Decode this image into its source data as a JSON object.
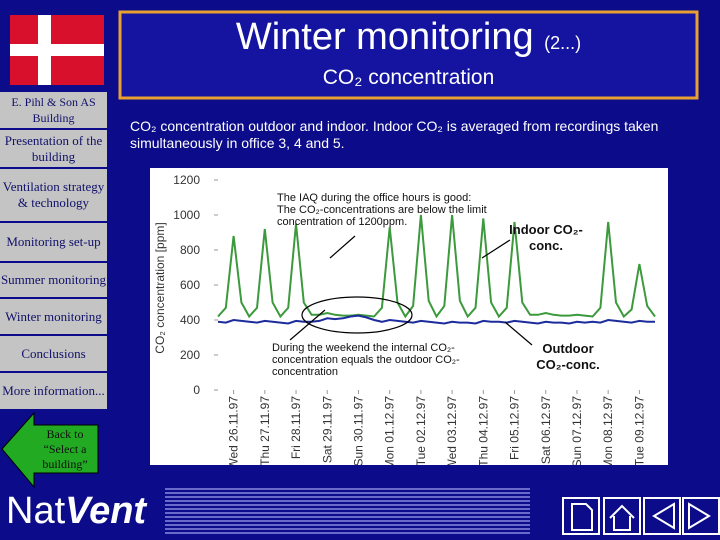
{
  "header": {
    "title": "Winter monitoring",
    "title_suffix": "(2...)",
    "subtitle": "CO₂ concentration"
  },
  "sidebar": [
    "E. Pihl & Son AS Building",
    "Presentation of the building",
    "Ventilation strategy & technology",
    "Monitoring set-up",
    "Summer monitoring",
    "Winter monitoring",
    "Conclusions",
    "More information..."
  ],
  "back_button": "Back to “Select a building”",
  "description": "CO₂ concentration outdoor and indoor. Indoor CO₂ is averaged from recordings taken simultaneously in office 3, 4 and 5.",
  "logo": [
    "Nat",
    "Vent"
  ],
  "chart_data": {
    "type": "line",
    "y_label": "CO₂ concentration [ppm]",
    "annotations": [
      "The IAQ during the office hours is good: The CO₂-concentrations are below the limit concentration of 1200ppm.",
      "During the weekend the internal CO₂-concentration equals the outdoor CO₂-concentration",
      "Indoor CO₂-conc.",
      "Outdoor CO₂-conc."
    ],
    "x": [
      0,
      0.25,
      0.5,
      0.75,
      1,
      1.25,
      1.5,
      1.75,
      2,
      2.25,
      2.5,
      2.75,
      3,
      3.25,
      3.5,
      3.75,
      4,
      4.25,
      4.5,
      4.75,
      5,
      5.25,
      5.5,
      5.75,
      6,
      6.25,
      6.5,
      6.75,
      7,
      7.25,
      7.5,
      7.75,
      8,
      8.25,
      8.5,
      8.75,
      9,
      9.25,
      9.5,
      9.75,
      10,
      10.25,
      10.5,
      10.75,
      11,
      11.25,
      11.5,
      11.75,
      12,
      12.25,
      12.5,
      12.75,
      13,
      13.25,
      13.5,
      13.75,
      14
    ],
    "xlim": [
      0,
      14
    ],
    "xticks": [
      {
        "value": 0.5,
        "label": "Wed 26.11.97"
      },
      {
        "value": 1.5,
        "label": "Thu 27.11.97"
      },
      {
        "value": 2.5,
        "label": "Fri 28.11.97"
      },
      {
        "value": 3.5,
        "label": "Sat 29.11.97"
      },
      {
        "value": 4.5,
        "label": "Sun 30.11.97"
      },
      {
        "value": 5.5,
        "label": "Mon 01.12.97"
      },
      {
        "value": 6.5,
        "label": "Tue 02.12.97"
      },
      {
        "value": 7.5,
        "label": "Wed 03.12.97"
      },
      {
        "value": 8.5,
        "label": "Thu 04.12.97"
      },
      {
        "value": 9.5,
        "label": "Fri 05.12.97"
      },
      {
        "value": 10.5,
        "label": "Sat 06.12.97"
      },
      {
        "value": 11.5,
        "label": "Sun 07.12.97"
      },
      {
        "value": 12.5,
        "label": "Mon 08.12.97"
      },
      {
        "value": 13.5,
        "label": "Tue 09.12.97"
      }
    ],
    "ylim": [
      0,
      1200
    ],
    "yticks": [
      0,
      200,
      400,
      600,
      800,
      1000,
      1200
    ],
    "grid": false,
    "series": [
      {
        "color": "#3c9a3c",
        "values": [
          420,
          470,
          880,
          500,
          420,
          470,
          920,
          500,
          420,
          470,
          950,
          500,
          430,
          430,
          440,
          430,
          425,
          425,
          430,
          425,
          420,
          470,
          930,
          500,
          420,
          480,
          1000,
          510,
          420,
          480,
          1000,
          510,
          420,
          470,
          980,
          500,
          420,
          470,
          960,
          500,
          430,
          430,
          440,
          430,
          425,
          425,
          430,
          425,
          420,
          470,
          960,
          500,
          420,
          460,
          720,
          480,
          420
        ]
      },
      {
        "color": "#1c2c9c",
        "values": [
          390,
          385,
          400,
          395,
          390,
          385,
          395,
          390,
          385,
          380,
          395,
          390,
          390,
          395,
          410,
          405,
          410,
          420,
          425,
          415,
          400,
          390,
          400,
          395,
          390,
          385,
          395,
          390,
          385,
          380,
          390,
          385,
          385,
          380,
          395,
          390,
          390,
          385,
          395,
          390,
          385,
          380,
          390,
          385,
          385,
          380,
          390,
          385,
          390,
          385,
          400,
          395,
          390,
          385,
          395,
          390,
          390
        ]
      }
    ]
  }
}
